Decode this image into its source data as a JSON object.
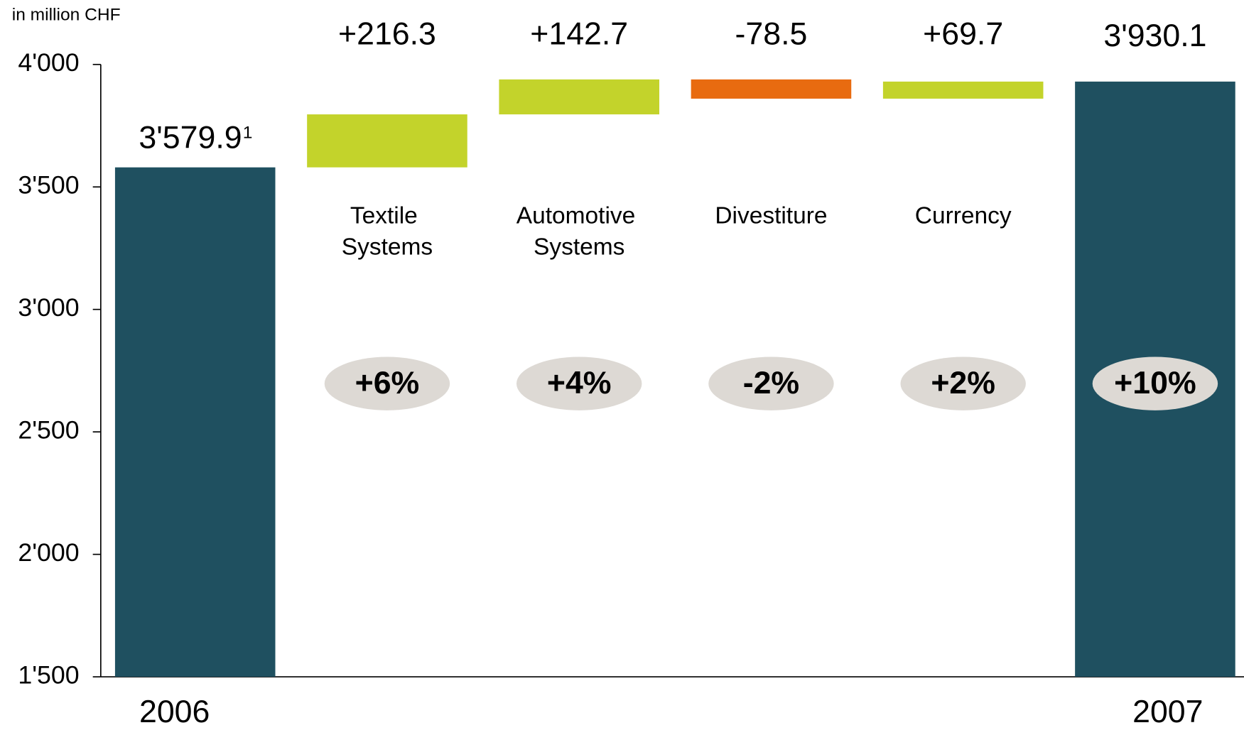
{
  "chart_data": {
    "type": "waterfall",
    "subtitle": "in million CHF",
    "categories": [
      "2006",
      "Textile Systems",
      "Automotive Systems",
      "Divestiture",
      "Currency",
      "2007"
    ],
    "measure": [
      "absolute",
      "relative",
      "relative",
      "relative",
      "relative",
      "absolute"
    ],
    "values": [
      3579.9,
      216.3,
      142.7,
      -78.5,
      69.7,
      3930.1
    ],
    "value_labels": [
      "3'579.9",
      "+216.3",
      "+142.7",
      "-78.5",
      "+69.7",
      "3'930.1"
    ],
    "value_label_superscripts": [
      "1",
      null,
      null,
      null,
      null,
      null
    ],
    "percent_labels": [
      null,
      "+6%",
      "+4%",
      "-2%",
      "+2%",
      "+10%"
    ],
    "colors": {
      "total": "#1f5060",
      "increase": "#c3d32b",
      "decrease": "#e86b10"
    },
    "ylim": [
      1500,
      4000
    ],
    "yticks": [
      {
        "value": 1500,
        "label": "1'500"
      },
      {
        "value": 2000,
        "label": "2'000"
      },
      {
        "value": 2500,
        "label": "2'500"
      },
      {
        "value": 3000,
        "label": "3'000"
      },
      {
        "value": 3500,
        "label": "3'500"
      },
      {
        "value": 4000,
        "label": "4'000"
      }
    ]
  }
}
